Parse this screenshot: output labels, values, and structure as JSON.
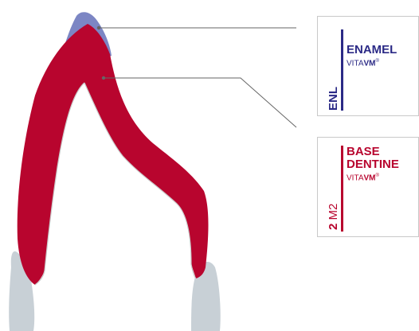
{
  "colors": {
    "enamel": "#7c86c4",
    "dentine": "#b8052e",
    "card_enamel": "#2b2a86",
    "card_dentine": "#b8052e",
    "grey_tooth": "#c8d0d6",
    "leader": "#666666"
  },
  "labels": [
    {
      "id": "enamel",
      "code": "ENL",
      "name": "ENAMEL",
      "brand_prefix": "VITA",
      "brand_bold": "VM",
      "brand_mark": "®"
    },
    {
      "id": "dentine",
      "code": "2 M2",
      "code_prefix": "2",
      "code_rest": "M2",
      "name": "BASE\nDENTINE",
      "brand_prefix": "VITA",
      "brand_bold": "VM",
      "brand_mark": "®"
    }
  ]
}
